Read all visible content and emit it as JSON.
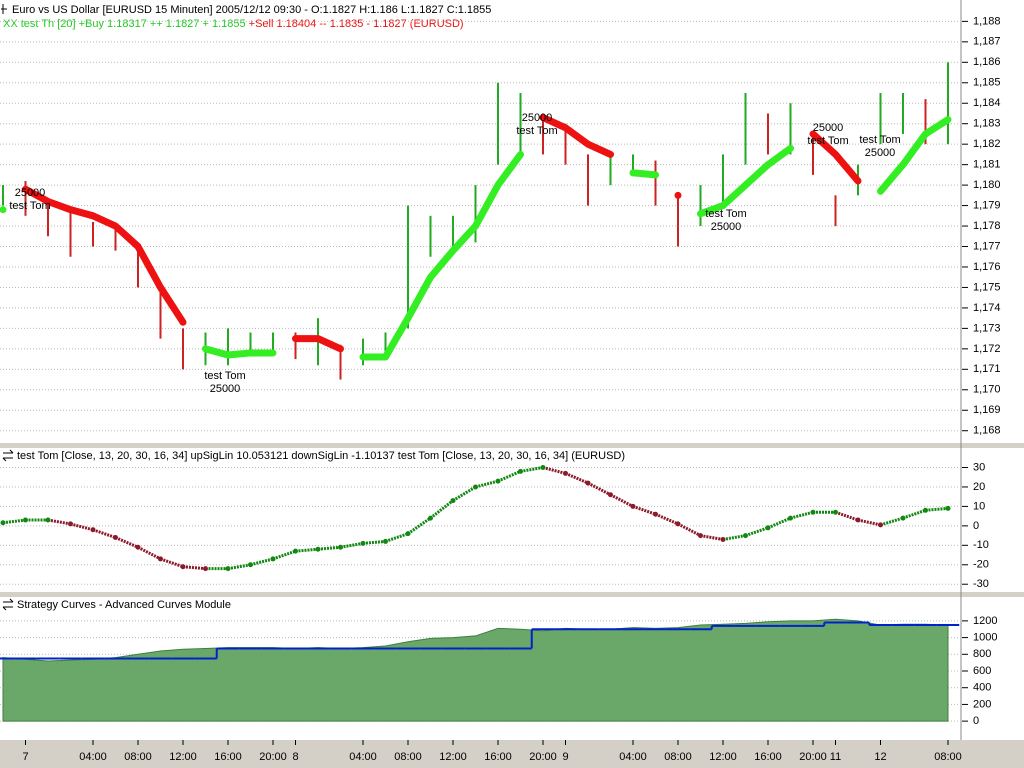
{
  "chart_data": [
    {
      "type": "range",
      "title": "Euro vs US Dollar [EURUSD  15 Minuten] 2005/12/12 09:30 - O:1.1827 H:1.186 L:1.1827 C:1.1855",
      "subtitle_buy": "XX test Th [20] +Buy  1.18317 ++ 1.1827 + 1.1855",
      "subtitle_sell": " +Sell  1.18404 -- 1.1835 - 1.1827 (EURUSD)",
      "up_color": "#22aa22",
      "down_color": "#cc2222",
      "high": [
        1.18,
        1.1802,
        1.1792,
        1.1788,
        1.1782,
        1.178,
        1.177,
        1.1752,
        1.173,
        1.1728,
        1.173,
        1.1728,
        1.1728,
        1.1728,
        1.1735,
        1.1722,
        1.1725,
        1.1728,
        1.179,
        1.1785,
        1.1785,
        1.18,
        1.185,
        1.1845,
        1.1835,
        1.183,
        1.1815,
        1.1815,
        1.1815,
        1.1812,
        1.1795,
        1.18,
        1.1815,
        1.1845,
        1.1835,
        1.184,
        1.1825,
        1.1795,
        1.181,
        1.1845,
        1.1845,
        1.1842,
        1.186
      ],
      "low": [
        1.179,
        1.1785,
        1.1775,
        1.1765,
        1.177,
        1.1768,
        1.175,
        1.1725,
        1.171,
        1.1712,
        1.1712,
        1.1718,
        1.1718,
        1.1715,
        1.1712,
        1.1705,
        1.1712,
        1.1715,
        1.173,
        1.1765,
        1.177,
        1.1772,
        1.181,
        1.1815,
        1.1815,
        1.181,
        1.179,
        1.18,
        1.1805,
        1.179,
        1.177,
        1.178,
        1.179,
        1.181,
        1.1815,
        1.1815,
        1.1805,
        1.178,
        1.1795,
        1.182,
        1.1825,
        1.182,
        1.182
      ],
      "signals": [
        {
          "color": "#33ee22",
          "values": [
            1.1788,
            null,
            null,
            null,
            null,
            null,
            null,
            null,
            null,
            1.172,
            1.1717,
            1.1718,
            1.1718,
            null,
            null,
            null,
            1.1716,
            1.1716,
            1.1735,
            1.1755,
            1.1768,
            1.178,
            1.18,
            1.1815,
            null,
            null,
            null,
            null,
            1.1806,
            1.1805,
            null,
            1.1786,
            1.179,
            1.18,
            1.181,
            1.1818,
            null,
            null,
            null,
            1.1797,
            1.181,
            1.1825,
            1.1832
          ]
        },
        {
          "color": "#ee1111",
          "values": [
            null,
            1.1798,
            1.1792,
            1.1788,
            1.1785,
            1.178,
            1.177,
            1.175,
            1.1733,
            null,
            null,
            null,
            null,
            1.1725,
            1.1725,
            1.172,
            null,
            null,
            null,
            null,
            null,
            null,
            null,
            null,
            1.1833,
            1.1828,
            1.182,
            1.1815,
            null,
            null,
            1.1795,
            null,
            null,
            null,
            null,
            null,
            1.1825,
            1.1815,
            1.1802,
            null,
            null,
            null,
            null
          ]
        }
      ],
      "annotations": [
        [
          "25000",
          "test Tom"
        ],
        [
          "test Tom",
          "25000"
        ],
        [
          "25000",
          "test Tom"
        ],
        [
          "test Tom",
          "25000"
        ],
        [
          "25000",
          "test Tom"
        ],
        [
          "test Tom",
          "25000"
        ]
      ],
      "ylim": [
        1.1674,
        1.1888
      ],
      "yticks": [
        {
          "value": 1.168,
          "label": "1,168"
        },
        {
          "value": 1.169,
          "label": "1,169"
        },
        {
          "value": 1.17,
          "label": "1,170"
        },
        {
          "value": 1.171,
          "label": "1,171"
        },
        {
          "value": 1.172,
          "label": "1,172"
        },
        {
          "value": 1.173,
          "label": "1,173"
        },
        {
          "value": 1.174,
          "label": "1,174"
        },
        {
          "value": 1.175,
          "label": "1,175"
        },
        {
          "value": 1.176,
          "label": "1,176"
        },
        {
          "value": 1.177,
          "label": "1,177"
        },
        {
          "value": 1.178,
          "label": "1,178"
        },
        {
          "value": 1.179,
          "label": "1,179"
        },
        {
          "value": 1.18,
          "label": "1,180"
        },
        {
          "value": 1.181,
          "label": "1,181"
        },
        {
          "value": 1.182,
          "label": "1,182"
        },
        {
          "value": 1.183,
          "label": "1,183"
        },
        {
          "value": 1.184,
          "label": "1,184"
        },
        {
          "value": 1.185,
          "label": "1,185"
        },
        {
          "value": 1.186,
          "label": "1,186"
        },
        {
          "value": 1.187,
          "label": "1,187"
        },
        {
          "value": 1.188,
          "label": "1,188"
        }
      ],
      "grid": true
    },
    {
      "type": "line",
      "title": "test Tom [Close, 13, 20, 30, 16, 34] upSigLin 10.053121 downSigLin -1.10137 test Tom [Close, 13, 20, 30, 16, 34] (EURUSD)",
      "up_color": "#118811",
      "down_color": "#8b1a2a",
      "values": [
        1.6,
        3,
        3,
        1,
        -2,
        -6,
        -11,
        -17,
        -21,
        -22,
        -22,
        -20,
        -17,
        -13,
        -12,
        -11,
        -9,
        -8,
        -4,
        4,
        13,
        20,
        23,
        28,
        30,
        27,
        22,
        16,
        10,
        6,
        1,
        -5,
        -7,
        -5,
        -1,
        4,
        7,
        7,
        3,
        0.5,
        4,
        8,
        9
      ],
      "ylim": [
        -34,
        39
      ],
      "yticks": [
        -30,
        -20,
        -10,
        0,
        10,
        20,
        30
      ],
      "grid": true
    },
    {
      "type": "area",
      "title": "Strategy Curves - Advanced Curves Module",
      "categories": [
        null,
        "7",
        null,
        null,
        "04:00",
        null,
        "08:00",
        null,
        "12:00",
        null,
        "16:00",
        null,
        "20:00",
        "8",
        null,
        null,
        "04:00",
        null,
        "08:00",
        null,
        "12:00",
        null,
        "16:00",
        null,
        "20:00",
        "9",
        null,
        null,
        "04:00",
        null,
        "08:00",
        null,
        "12:00",
        null,
        "16:00",
        null,
        "20:00",
        "11",
        null,
        "12",
        null,
        null,
        "08:00"
      ],
      "series": [
        {
          "color": "#6aa86a",
          "values": [
            760,
            740,
            720,
            730,
            740,
            760,
            800,
            840,
            860,
            870,
            880,
            880,
            880,
            870,
            880,
            870,
            880,
            900,
            950,
            990,
            1000,
            1020,
            1110,
            1100,
            1080,
            1110,
            1100,
            1100,
            1120,
            1110,
            1120,
            1150,
            1160,
            1170,
            1190,
            1200,
            1200,
            1220,
            1200,
            1150,
            1160,
            1160,
            1150
          ]
        },
        {
          "color": "#0022cc",
          "values": [
            750,
            750,
            750,
            750,
            750,
            750,
            750,
            750,
            750,
            750,
            870,
            870,
            870,
            870,
            870,
            870,
            870,
            870,
            870,
            870,
            870,
            870,
            870,
            870,
            1100,
            1100,
            1100,
            1100,
            1100,
            1100,
            1100,
            1100,
            1140,
            1140,
            1140,
            1140,
            1140,
            1180,
            1180,
            1150,
            1150,
            1150,
            1150
          ]
        }
      ],
      "ylim": [
        -190,
        1450
      ],
      "yticks": [
        0,
        200,
        400,
        600,
        800,
        1000,
        1200
      ],
      "grid": true
    }
  ]
}
